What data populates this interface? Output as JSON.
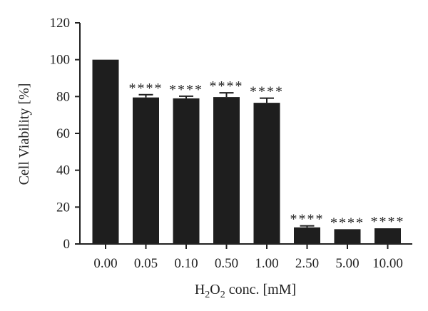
{
  "chart_data": {
    "type": "bar",
    "title": "",
    "xlabel": {
      "main": "H",
      "sub1": "2",
      "mid": "O",
      "sub2": "2",
      "rest": " conc. [mM]"
    },
    "ylabel": "Cell Viability [%]",
    "ylim": [
      0,
      120
    ],
    "yticks": [
      "0",
      "20",
      "40",
      "60",
      "80",
      "100",
      "120"
    ],
    "categories": [
      "0.00",
      "0.05",
      "0.10",
      "0.50",
      "1.00",
      "2.50",
      "5.00",
      "10.00"
    ],
    "values": [
      100,
      79.5,
      79,
      79.7,
      76.6,
      9,
      8,
      8.5
    ],
    "errors": [
      0,
      1.5,
      1.2,
      2.3,
      2.5,
      0.8,
      0,
      0
    ],
    "significance": [
      "",
      "****",
      "****",
      "****",
      "****",
      "****",
      "****",
      "****"
    ],
    "colors": {
      "bar": "#1e1e1e",
      "axis": "#222222"
    },
    "grid": false,
    "legend": "none"
  }
}
